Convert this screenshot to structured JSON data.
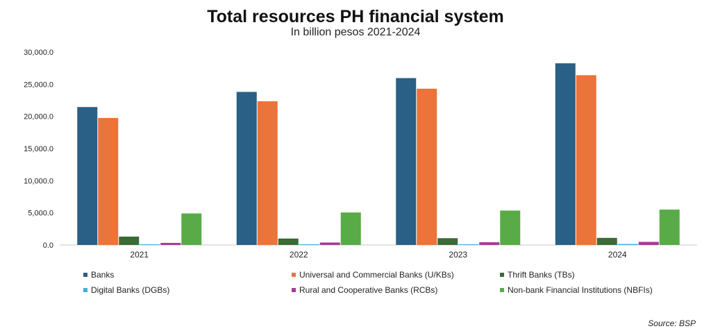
{
  "chart_data": {
    "type": "bar",
    "title": "Total resources PH financial system",
    "subtitle": "In billion pesos 2021-2024",
    "categories": [
      "2021",
      "2022",
      "2023",
      "2024"
    ],
    "ylim": [
      0,
      30000
    ],
    "yticks": [
      "0.0",
      "5,000.0",
      "10,000.0",
      "15,000.0",
      "20,000.0",
      "25,000.0",
      "30,000.0"
    ],
    "ytick_values": [
      0,
      5000,
      10000,
      15000,
      20000,
      25000,
      30000
    ],
    "grid": false,
    "legend_position": "bottom",
    "series": [
      {
        "name": "Banks",
        "color": "#2a5f86",
        "values": [
          21450,
          23800,
          25950,
          28250
        ]
      },
      {
        "name": "Universal and Commercial Banks (U/KBs)",
        "color": "#ea743a",
        "values": [
          19750,
          22350,
          24300,
          26400
        ]
      },
      {
        "name": "Thrift Banks (TBs)",
        "color": "#3b6b35",
        "values": [
          1300,
          1000,
          1050,
          1100
        ]
      },
      {
        "name": "Digital Banks (DGBs)",
        "color": "#40aee0",
        "values": [
          20,
          50,
          100,
          150
        ]
      },
      {
        "name": "Rural and Cooperative Banks (RCBs)",
        "color": "#a53b9a",
        "values": [
          320,
          380,
          420,
          480
        ]
      },
      {
        "name": "Non-bank Financial Institutions (NBFIs)",
        "color": "#58ab46",
        "values": [
          4900,
          5050,
          5350,
          5500
        ]
      }
    ],
    "source": "Source: BSP"
  }
}
